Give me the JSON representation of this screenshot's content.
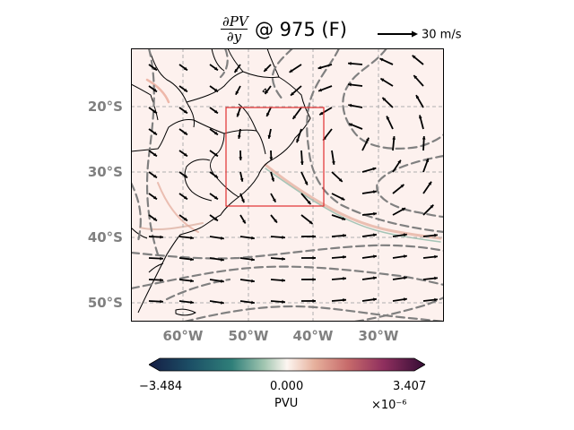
{
  "title": {
    "numerator": "∂PV",
    "denominator": "∂y",
    "suffix": "@ 975 (F)"
  },
  "quiver_key": {
    "label": "30 m/s"
  },
  "map": {
    "projection": "PlateCarree",
    "lon_range": [
      -68,
      -20
    ],
    "lat_range": [
      -53,
      -11
    ],
    "lat_ticks": [
      {
        "value": -20,
        "label": "20°S"
      },
      {
        "value": -30,
        "label": "30°S"
      },
      {
        "value": -40,
        "label": "40°S"
      },
      {
        "value": -50,
        "label": "50°S"
      }
    ],
    "lon_ticks": [
      {
        "value": -60,
        "label": "60°W"
      },
      {
        "value": -50,
        "label": "50°W"
      },
      {
        "value": -40,
        "label": "40°W"
      },
      {
        "value": -30,
        "label": "30°W"
      }
    ],
    "highlight_box": {
      "lon": [
        -53.5,
        -38.5
      ],
      "lat": [
        -35.3,
        -20.1
      ]
    },
    "colors": {
      "background": "#fdf1ee",
      "box": "#e03030",
      "contour": "#808080",
      "grid": "#b0b0b0"
    }
  },
  "colorbar": {
    "min_label": "−3.484",
    "mid_label": "0.000",
    "max_label": "3.407",
    "exponent": "×10⁻⁶",
    "units": "PVU",
    "colormap": "curl"
  }
}
